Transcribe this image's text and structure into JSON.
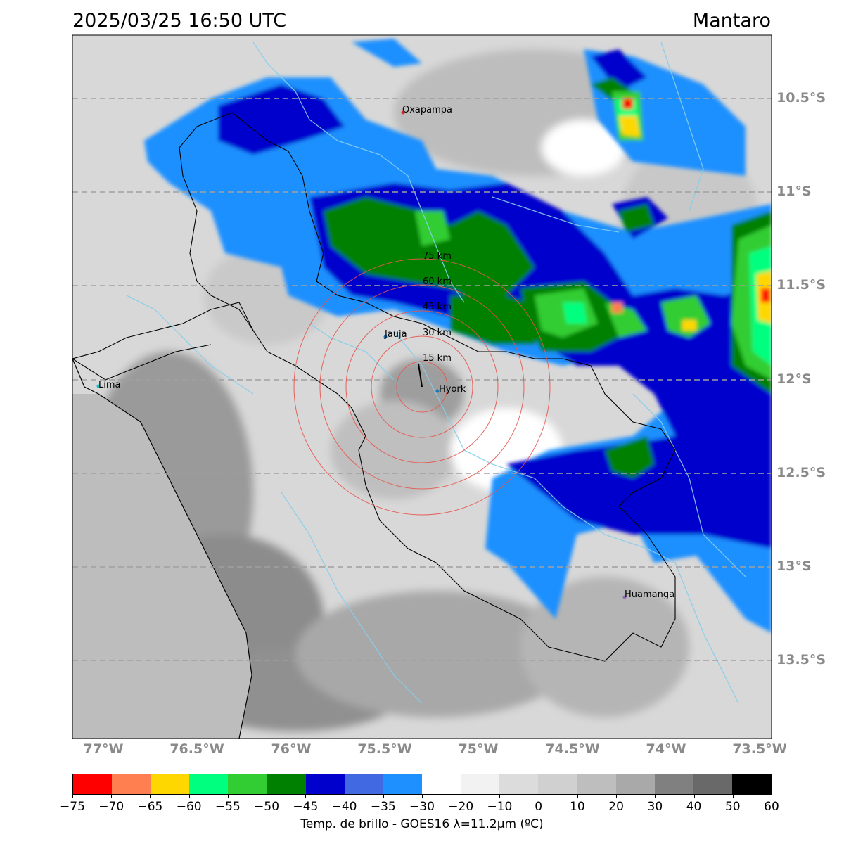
{
  "header": {
    "timestamp": "2025/03/25 16:50 UTC",
    "region": "Mantaro"
  },
  "map": {
    "lat_labels": [
      "10.5°S",
      "11°S",
      "11.5°S",
      "12°S",
      "12.5°S",
      "13°S",
      "13.5°S"
    ],
    "lon_labels": [
      "77°W",
      "76.5°W",
      "76°W",
      "75.5°W",
      "75°W",
      "74.5°W",
      "74°W",
      "73.5°W"
    ],
    "cities": [
      {
        "name": "Oxapampa",
        "color": "#d62728"
      },
      {
        "name": "Jauja",
        "color": "#1f77b4"
      },
      {
        "name": "Lima",
        "color": "#17becf"
      },
      {
        "name": "Hyork",
        "color": "#1f77b4"
      },
      {
        "name": "Huamanga",
        "color": "#9467bd"
      }
    ],
    "range_rings": [
      "15 km",
      "30 km",
      "45 km",
      "60 km",
      "75 km"
    ],
    "ring_color": "#e8554e",
    "river_color": "#87ceeb",
    "ocean_color": "#bdbdbd",
    "gridline_color": "#a0a0a0"
  },
  "colorbar": {
    "label": "Temp. de brillo - GOES16 λ=11.2μm (ºC)",
    "ticks": [
      "−75",
      "−70",
      "−65",
      "−60",
      "−55",
      "−50",
      "−45",
      "−40",
      "−35",
      "−30",
      "−20",
      "−10",
      "0",
      "10",
      "20",
      "30",
      "40",
      "50",
      "60"
    ],
    "colors": [
      "#ff0000",
      "#ff7f50",
      "#ffd700",
      "#00ff7f",
      "#32cd32",
      "#008000",
      "#0000cd",
      "#4169e1",
      "#1e90ff",
      "#ffffff",
      "#f2f2f2",
      "#dcdcdc",
      "#d0d0d0",
      "#bebebe",
      "#a9a9a9",
      "#808080",
      "#696969",
      "#000000"
    ]
  }
}
